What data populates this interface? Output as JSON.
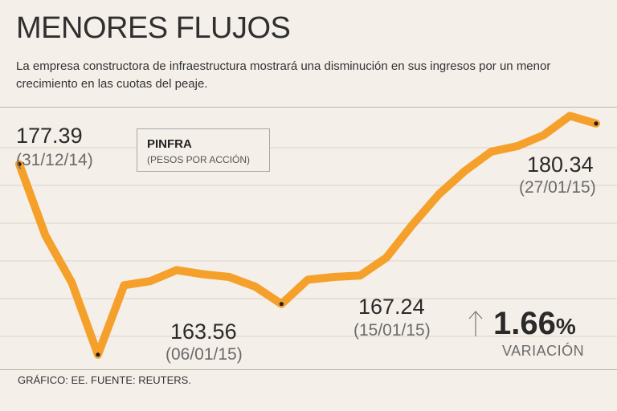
{
  "header": {
    "title": "MENORES FLUJOS",
    "subtitle": "La empresa constructora de infraestructura mostrará una disminución en sus ingresos por un menor crecimiento en las cuotas del peaje."
  },
  "legend": {
    "name": "PINFRA",
    "unit": "(PESOS POR ACCIÓN)"
  },
  "annotations": [
    {
      "value": "177.39",
      "date": "(31/12/14)"
    },
    {
      "value": "163.56",
      "date": "(06/01/15)"
    },
    {
      "value": "167.24",
      "date": "(15/01/15)"
    },
    {
      "value": "180.34",
      "date": "(27/01/15)"
    }
  ],
  "variation": {
    "value": "1.66",
    "unit": "%",
    "label": "VARIACIÓN",
    "direction": "up"
  },
  "source": "GRÁFICO: EE. FUENTE: REUTERS.",
  "colors": {
    "line": "#f5a02a",
    "background": "#f4efe9",
    "gridline": "#ddd3ca"
  },
  "chart_data": {
    "type": "line",
    "title": "MENORES FLUJOS",
    "series": [
      {
        "name": "PINFRA",
        "values": [
          177.39,
          172.2,
          168.8,
          163.56,
          168.6,
          168.9,
          169.7,
          169.4,
          169.2,
          168.5,
          167.24,
          169.0,
          169.2,
          169.3,
          170.6,
          173.0,
          175.2,
          176.9,
          178.3,
          178.7,
          179.5,
          180.9,
          180.34
        ]
      }
    ],
    "ylim": [
      162.5,
      181.5
    ],
    "grid": true,
    "marked_points": [
      0,
      3,
      10,
      22
    ]
  }
}
